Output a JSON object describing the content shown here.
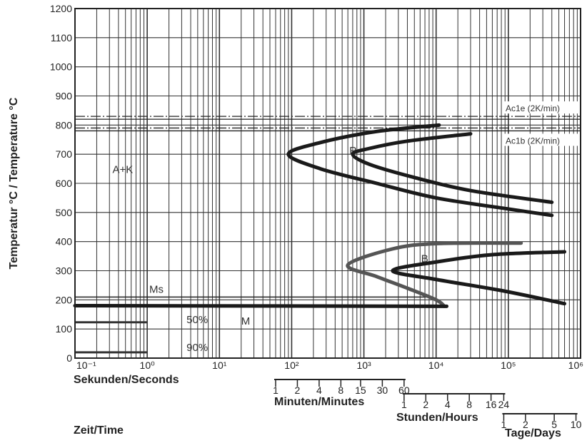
{
  "chart_data": {
    "type": "line",
    "title": "",
    "ylabel": "Temperatur °C / Temperature °C",
    "xlabel_primary": "Sekunden/Seconds",
    "xlabel_time": "Zeit/Time",
    "xscale": "log",
    "xlim": [
      0.1,
      1000000
    ],
    "ylim": [
      0,
      1200
    ],
    "grid": true,
    "x_ticks": [
      "10⁻¹",
      "10⁰",
      "10¹",
      "10²",
      "10³",
      "10⁴",
      "10⁵",
      "10⁶"
    ],
    "y_ticks": [
      "0",
      "100",
      "200",
      "300",
      "400",
      "500",
      "600",
      "700",
      "800",
      "900",
      "1000",
      "1100",
      "1200"
    ],
    "secondary_axes": [
      {
        "label": "Minuten/Minutes",
        "ticks": [
          "1",
          "2",
          "4",
          "8",
          "15",
          "30",
          "60"
        ],
        "values_seconds": [
          60,
          120,
          240,
          480,
          900,
          1800,
          3600
        ]
      },
      {
        "label": "Stunden/Hours",
        "ticks": [
          "1",
          "2",
          "4",
          "8",
          "16",
          "24"
        ],
        "values_seconds": [
          3600,
          7200,
          14400,
          28800,
          57600,
          86400
        ]
      },
      {
        "label": "Tage/Days",
        "ticks": [
          "1",
          "2",
          "5",
          "10"
        ],
        "values_seconds": [
          86400,
          172800,
          432000,
          864000
        ]
      }
    ],
    "reference_lines": [
      {
        "name": "Ac1e (2K/min)",
        "y": 825
      },
      {
        "name": "Ac1b (2K/min)",
        "y": 785
      },
      {
        "name": "Ms",
        "y": 200
      }
    ],
    "region_labels": [
      {
        "text": "A+K",
        "x": 0.33,
        "y": 635
      },
      {
        "text": "P",
        "x": 630,
        "y": 700
      },
      {
        "text": "B",
        "x": 6200,
        "y": 330
      },
      {
        "text": "M",
        "x": 20,
        "y": 115
      },
      {
        "text": "50%",
        "x": 3.5,
        "y": 120
      },
      {
        "text": "90%",
        "x": 3.5,
        "y": 25
      }
    ],
    "series": [
      {
        "name": "P",
        "stroke": "#1a1a1a",
        "points": [
          [
            11000,
            800
          ],
          [
            1500,
            778
          ],
          [
            250,
            740
          ],
          [
            90,
            700
          ],
          [
            250,
            650
          ],
          [
            1500,
            600
          ],
          [
            10000,
            550
          ],
          [
            100000,
            512
          ],
          [
            400000,
            490
          ]
        ]
      },
      {
        "name": "P",
        "stroke": "#1a1a1a",
        "points": [
          [
            30000,
            770
          ],
          [
            4000,
            745
          ],
          [
            1200,
            720
          ],
          [
            700,
            700
          ],
          [
            1200,
            665
          ],
          [
            5000,
            620
          ],
          [
            30000,
            575
          ],
          [
            400000,
            535
          ]
        ]
      },
      {
        "name": "B",
        "stroke": "#555555",
        "points": [
          [
            150000,
            395
          ],
          [
            10000,
            393
          ],
          [
            2500,
            375
          ],
          [
            600,
            320
          ],
          [
            1500,
            280
          ],
          [
            4000,
            240
          ],
          [
            10000,
            200
          ],
          [
            13000,
            178
          ]
        ]
      },
      {
        "name": "B",
        "stroke": "#1a1a1a",
        "points": [
          [
            600000,
            365
          ],
          [
            60000,
            355
          ],
          [
            10000,
            330
          ],
          [
            2500,
            300
          ],
          [
            10000,
            270
          ],
          [
            80000,
            232
          ],
          [
            600000,
            187
          ]
        ]
      },
      {
        "name": "Ms",
        "stroke": "#1a1a1a",
        "points": [
          [
            0.1,
            180
          ],
          [
            14000,
            178
          ]
        ]
      }
    ],
    "short_lines": [
      {
        "name": "50%",
        "y": 123,
        "x": [
          0.1,
          1
        ],
        "stroke": "#333333"
      },
      {
        "name": "90%",
        "y": 20,
        "x": [
          0.1,
          1
        ],
        "stroke": "#333333"
      }
    ],
    "colors": {
      "axis": "#222222",
      "grid": "#333333",
      "curve": "#1a1a1a",
      "curve_gray": "#555555"
    }
  }
}
